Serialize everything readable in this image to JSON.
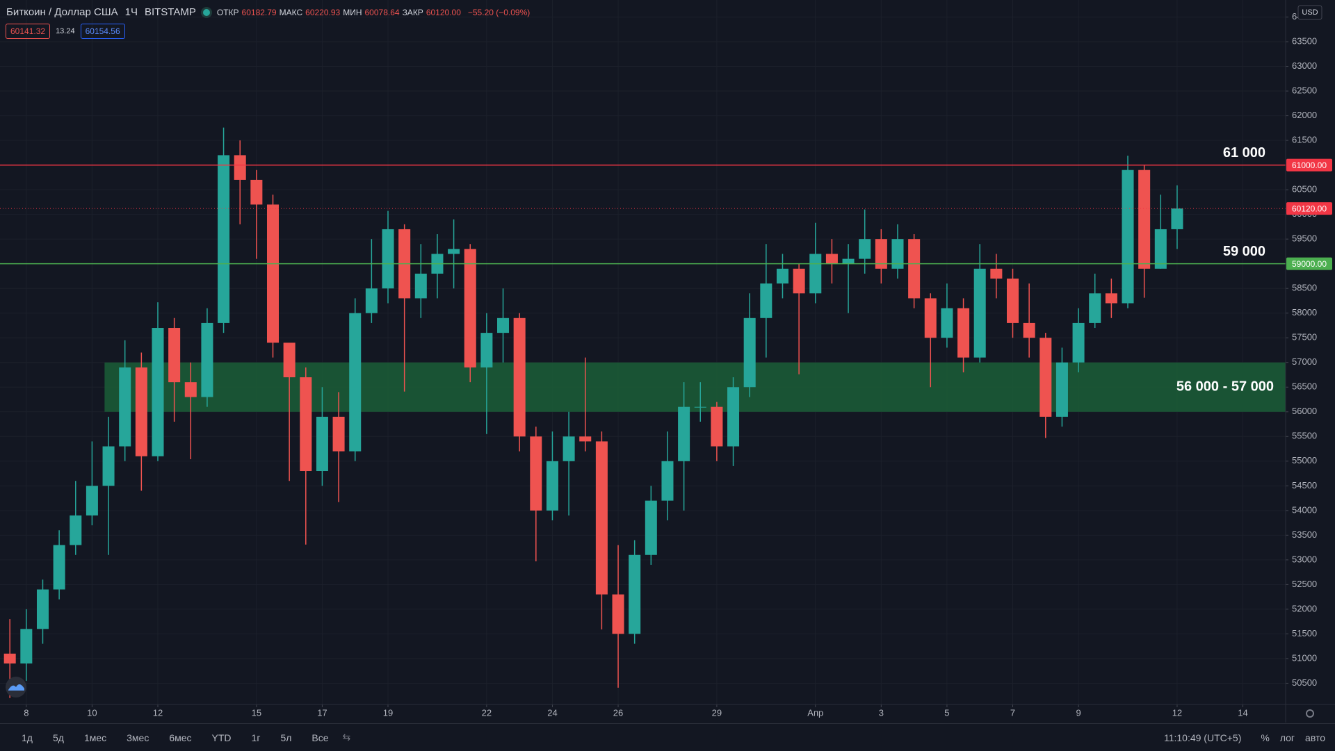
{
  "header": {
    "symbol": "Биткоин / Доллар США",
    "interval": "1Ч",
    "exchange": "BITSTAMP",
    "ohlc": [
      {
        "key": "ОТКР",
        "value": "60182.79"
      },
      {
        "key": "МАКС",
        "value": "60220.93"
      },
      {
        "key": "МИН",
        "value": "60078.64"
      },
      {
        "key": "ЗАКР",
        "value": "60120.00"
      }
    ],
    "change": "−55.20 (−0.09%)",
    "bid": "60141.32",
    "spread": "13.24",
    "ask": "60154.56",
    "currency": "USD"
  },
  "toolbar": {
    "ranges": [
      "1д",
      "5д",
      "1мес",
      "3мес",
      "6мес",
      "YTD",
      "1г",
      "5л",
      "Все"
    ],
    "time": "11:10:49 (UTC+5)",
    "percent": "%",
    "log": "лог",
    "auto": "авто"
  },
  "chart_data": {
    "type": "candlestick",
    "up_color": "#26a69a",
    "down_color": "#ef5350",
    "grid": true,
    "x": [
      -0.5,
      0,
      0.5,
      1,
      1.5,
      2,
      2.5,
      3,
      3.5,
      4,
      4.5,
      5,
      5.5,
      6,
      6.5,
      7,
      7.5,
      8,
      8.5,
      9,
      9.5,
      10,
      10.5,
      11,
      11.5,
      12,
      12.5,
      13,
      13.5,
      14,
      14.5,
      15,
      15.5,
      16,
      16.5,
      17,
      17.5,
      18,
      18.5,
      19,
      19.5,
      20,
      20.5,
      21,
      21.5,
      22,
      22.5,
      23,
      23.5,
      24,
      24.5,
      25,
      25.5,
      26,
      26.5,
      27,
      27.5,
      28,
      28.5,
      29,
      29.5,
      30,
      30.5,
      31,
      31.5,
      32,
      32.5,
      33,
      33.5,
      34,
      34.5,
      35
    ],
    "open": [
      51100,
      50900,
      51600,
      52400,
      53300,
      53900,
      54500,
      55300,
      56900,
      55100,
      57700,
      56600,
      56300,
      57800,
      61200,
      60700,
      60200,
      57400,
      56700,
      54800,
      55900,
      55200,
      58000,
      58500,
      59700,
      58300,
      58800,
      59200,
      59300,
      56900,
      57600,
      57900,
      55500,
      54000,
      55000,
      55500,
      55400,
      52300,
      51500,
      53100,
      54200,
      55000,
      56100,
      56100,
      55300,
      56500,
      57900,
      58600,
      58900,
      58400,
      59200,
      59000,
      59100,
      59500,
      58900,
      59500,
      58300,
      57500,
      58100,
      57100,
      58900,
      58700,
      57800,
      57500,
      55900,
      57000,
      57800,
      58400,
      58200,
      60900,
      58900,
      59700
    ],
    "high": [
      51800,
      52000,
      52600,
      53600,
      54600,
      55400,
      55900,
      57450,
      57200,
      58220,
      57900,
      57000,
      58100,
      61760,
      61500,
      60900,
      60400,
      57300,
      56900,
      56500,
      56400,
      58300,
      59500,
      60070,
      59800,
      59400,
      59600,
      59900,
      59400,
      58000,
      58500,
      58000,
      55700,
      55600,
      56000,
      57100,
      55600,
      53300,
      53400,
      54500,
      55600,
      56600,
      56600,
      56200,
      56700,
      58400,
      59400,
      59200,
      59000,
      59830,
      59500,
      59400,
      60100,
      59700,
      59800,
      59600,
      58400,
      58600,
      58300,
      59400,
      59200,
      58900,
      58600,
      57600,
      57300,
      58100,
      58800,
      58700,
      61190,
      61000,
      60400,
      60590
    ],
    "low": [
      50200,
      50550,
      51300,
      52200,
      53100,
      53700,
      53100,
      55000,
      54400,
      55000,
      55800,
      55040,
      56100,
      57600,
      59800,
      59100,
      57100,
      54600,
      53310,
      54500,
      54170,
      55000,
      57800,
      58200,
      56410,
      57900,
      58300,
      58500,
      56600,
      55550,
      57000,
      55200,
      52970,
      53800,
      53900,
      55200,
      51590,
      50410,
      51300,
      52900,
      53800,
      54000,
      55800,
      55000,
      54900,
      56300,
      57100,
      58300,
      56760,
      58200,
      58600,
      58000,
      58800,
      58600,
      58700,
      58100,
      56500,
      57300,
      56800,
      57000,
      58300,
      57500,
      57100,
      55470,
      55700,
      56800,
      57700,
      57900,
      58100,
      58310,
      58900,
      59300
    ],
    "close": [
      50900,
      51600,
      52400,
      53300,
      53900,
      54500,
      55300,
      56900,
      55100,
      57700,
      56600,
      56300,
      57800,
      61200,
      60700,
      60200,
      57400,
      56700,
      54800,
      55900,
      55200,
      58000,
      58500,
      59700,
      58300,
      58800,
      59200,
      59300,
      56900,
      57600,
      57900,
      55500,
      54000,
      55000,
      55500,
      55400,
      52300,
      51500,
      53100,
      54200,
      55000,
      56100,
      56100,
      55300,
      56500,
      57900,
      58600,
      58900,
      58400,
      59200,
      59000,
      59100,
      59500,
      58900,
      59500,
      58300,
      57500,
      58100,
      57100,
      58900,
      58700,
      57800,
      57500,
      55900,
      57000,
      57800,
      58400,
      58200,
      60900,
      58900,
      59700,
      60120
    ],
    "xlim": [
      -0.8,
      38.3
    ],
    "ylim": [
      50070,
      64345
    ],
    "xticks": [
      {
        "value": 0,
        "label": "8"
      },
      {
        "value": 2,
        "label": "10"
      },
      {
        "value": 4,
        "label": "12"
      },
      {
        "value": 7,
        "label": "15"
      },
      {
        "value": 9,
        "label": "17"
      },
      {
        "value": 11,
        "label": "19"
      },
      {
        "value": 14,
        "label": "22"
      },
      {
        "value": 16,
        "label": "24"
      },
      {
        "value": 18,
        "label": "26"
      },
      {
        "value": 21,
        "label": "29"
      },
      {
        "value": 24,
        "label": "Апр"
      },
      {
        "value": 26,
        "label": "3"
      },
      {
        "value": 28,
        "label": "5"
      },
      {
        "value": 30,
        "label": "7"
      },
      {
        "value": 32,
        "label": "9"
      },
      {
        "value": 35,
        "label": "12"
      },
      {
        "value": 37,
        "label": "14"
      }
    ],
    "yticks": [
      50500,
      51000,
      51500,
      52000,
      52500,
      53000,
      53500,
      54000,
      54500,
      55000,
      55500,
      56000,
      56500,
      57000,
      57500,
      58000,
      58500,
      59000,
      59500,
      60000,
      60500,
      61000,
      61500,
      62000,
      62500,
      63000,
      63500,
      64000
    ],
    "zone": {
      "from": 56000,
      "to": 57000,
      "start_x": 2.38,
      "color": "#1b5a36",
      "annotation": "56 000 - 57 000"
    },
    "levels": [
      {
        "value": 61000,
        "label": "61000.00",
        "color": "#f23645",
        "annotation": "61 000"
      },
      {
        "value": 59000,
        "label": "59000.00",
        "color": "#4caf50",
        "annotation": "59 000"
      }
    ],
    "last_price": {
      "value": 60120,
      "label": "60120.00",
      "color": "#f23645"
    }
  }
}
